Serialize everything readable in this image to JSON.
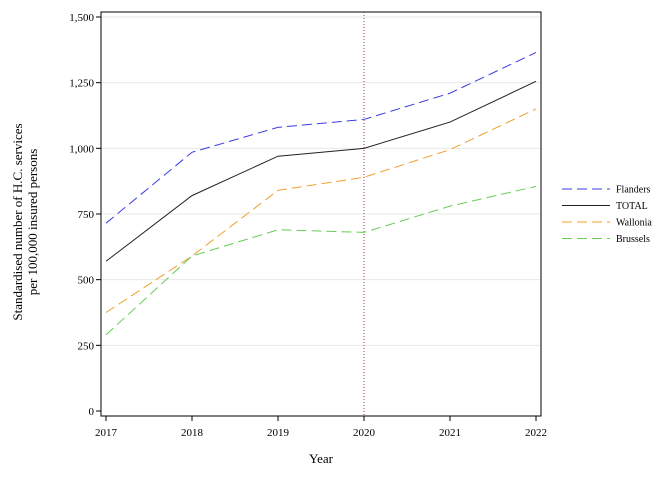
{
  "chart_data": {
    "type": "line",
    "title": "",
    "xlabel": "Year",
    "ylabel_lines": [
      "Standardised number of H.C. services",
      "per 100,000 insured persons"
    ],
    "x": [
      2017,
      2018,
      2019,
      2020,
      2021,
      2022
    ],
    "x_tick_labels": [
      "2017",
      "2018",
      "2019",
      "2020",
      "2021",
      "2022"
    ],
    "y_ticks": [
      0,
      250,
      500,
      750,
      1000,
      1250,
      1500
    ],
    "y_tick_labels": [
      "0",
      "250",
      "500",
      "750",
      "1,000",
      "1,250",
      "1,500"
    ],
    "xlim": [
      2017,
      2022
    ],
    "ylim": [
      0,
      1500
    ],
    "grid": "horizontal",
    "reference_line_x": 2020,
    "legend_position": "right",
    "series": [
      {
        "name": "Flanders",
        "color": "#3a3ae0",
        "dash": "dashed",
        "values": [
          715,
          985,
          1080,
          1110,
          1210,
          1365
        ]
      },
      {
        "name": "TOTAL",
        "color": "#222222",
        "dash": "solid",
        "values": [
          570,
          820,
          970,
          1000,
          1100,
          1255
        ]
      },
      {
        "name": "Wallonia",
        "color": "#f0a030",
        "dash": "dashed",
        "values": [
          375,
          590,
          840,
          890,
          995,
          1150
        ]
      },
      {
        "name": "Brussels",
        "color": "#66cc55",
        "dash": "dashed",
        "values": [
          290,
          590,
          690,
          680,
          780,
          855
        ]
      }
    ]
  }
}
